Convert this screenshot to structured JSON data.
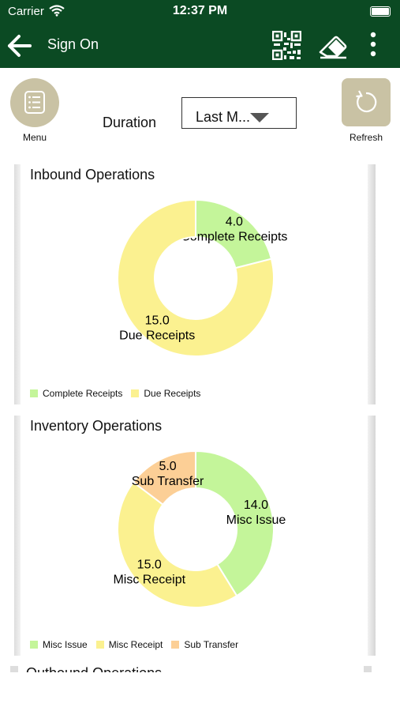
{
  "status": {
    "carrier": "Carrier",
    "time": "12:37 PM"
  },
  "nav": {
    "title": "Sign On"
  },
  "controls": {
    "menu_label": "Menu",
    "refresh_label": "Refresh",
    "duration_label": "Duration",
    "duration_value": "Last M..."
  },
  "cards": [
    {
      "title": "Inbound Operations",
      "chart_data": {
        "type": "pie",
        "donut": true,
        "categories": [
          "Complete Receipts",
          "Due Receipts"
        ],
        "values": [
          4.0,
          15.0
        ],
        "value_labels": [
          "4.0",
          "15.0"
        ],
        "colors": [
          "#c4f59a",
          "#fbf190"
        ],
        "legend_position": "bottom-left"
      }
    },
    {
      "title": "Inventory Operations",
      "chart_data": {
        "type": "pie",
        "donut": true,
        "categories": [
          "Misc Issue",
          "Misc Receipt",
          "Sub Transfer"
        ],
        "values": [
          14.0,
          15.0,
          5.0
        ],
        "value_labels": [
          "14.0",
          "15.0",
          "5.0"
        ],
        "colors": [
          "#c4f59a",
          "#fbf190",
          "#fccf96"
        ],
        "legend_position": "bottom-left"
      }
    },
    {
      "title": "Outbound Operations"
    }
  ]
}
